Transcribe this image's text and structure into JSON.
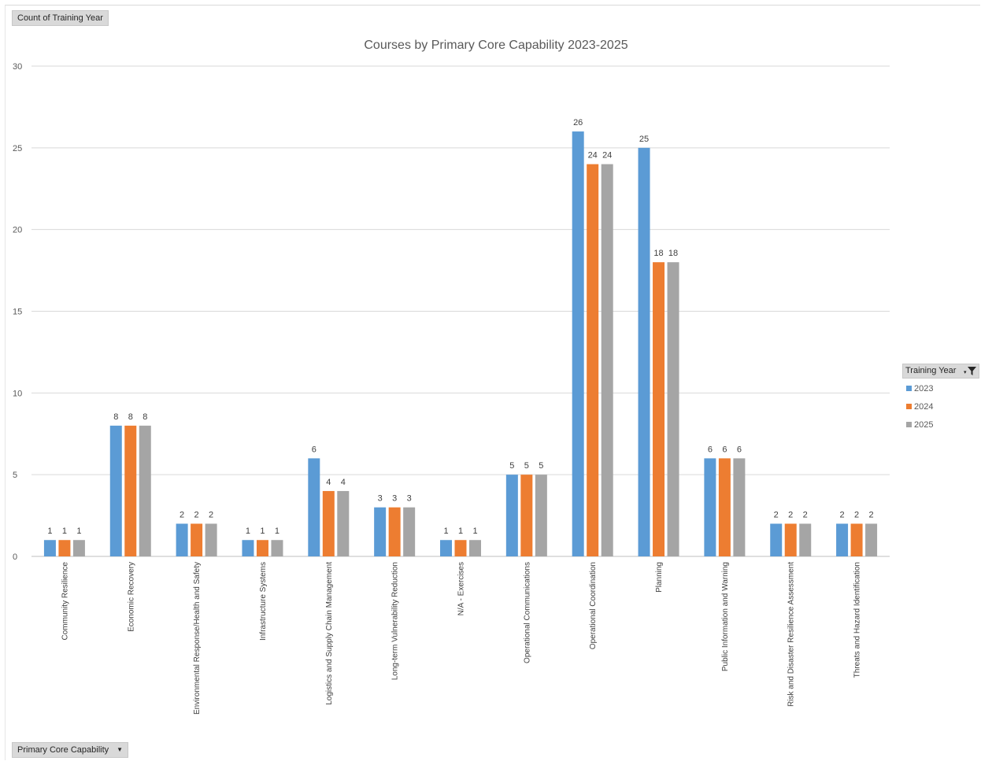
{
  "pivot": {
    "value_field": "Count of Training Year",
    "axis_field": "Primary Core Capability",
    "legend_field": "Training Year"
  },
  "chart_data": {
    "type": "bar",
    "title": "Courses by Primary Core Capability 2023-2025",
    "xlabel": "",
    "ylabel": "",
    "ylim": [
      0,
      30
    ],
    "yticks": [
      0,
      5,
      10,
      15,
      20,
      25,
      30
    ],
    "grid": true,
    "legend_position": "right",
    "categories": [
      "Community Resilience",
      "Economic Recovery",
      "Environmental Response/Health and Safety",
      "Infrastructure Systems",
      "Logistics and Supply Chain Management",
      "Long-term Vulnerability Reduction",
      "N/A - Exercises",
      "Operational Communications",
      "Operational Coordination",
      "Planning",
      "Public Information and Warning",
      "Risk and Disaster Resilience Assessment",
      "Threats and Hazard Identification"
    ],
    "series": [
      {
        "name": "2023",
        "color": "#5b9bd5",
        "values": [
          1,
          8,
          2,
          1,
          6,
          3,
          1,
          5,
          26,
          25,
          6,
          2,
          2
        ]
      },
      {
        "name": "2024",
        "color": "#ed7d31",
        "values": [
          1,
          8,
          2,
          1,
          4,
          3,
          1,
          5,
          24,
          18,
          6,
          2,
          2
        ]
      },
      {
        "name": "2025",
        "color": "#a5a5a5",
        "values": [
          1,
          8,
          2,
          1,
          4,
          3,
          1,
          5,
          24,
          18,
          6,
          2,
          2
        ]
      }
    ]
  }
}
